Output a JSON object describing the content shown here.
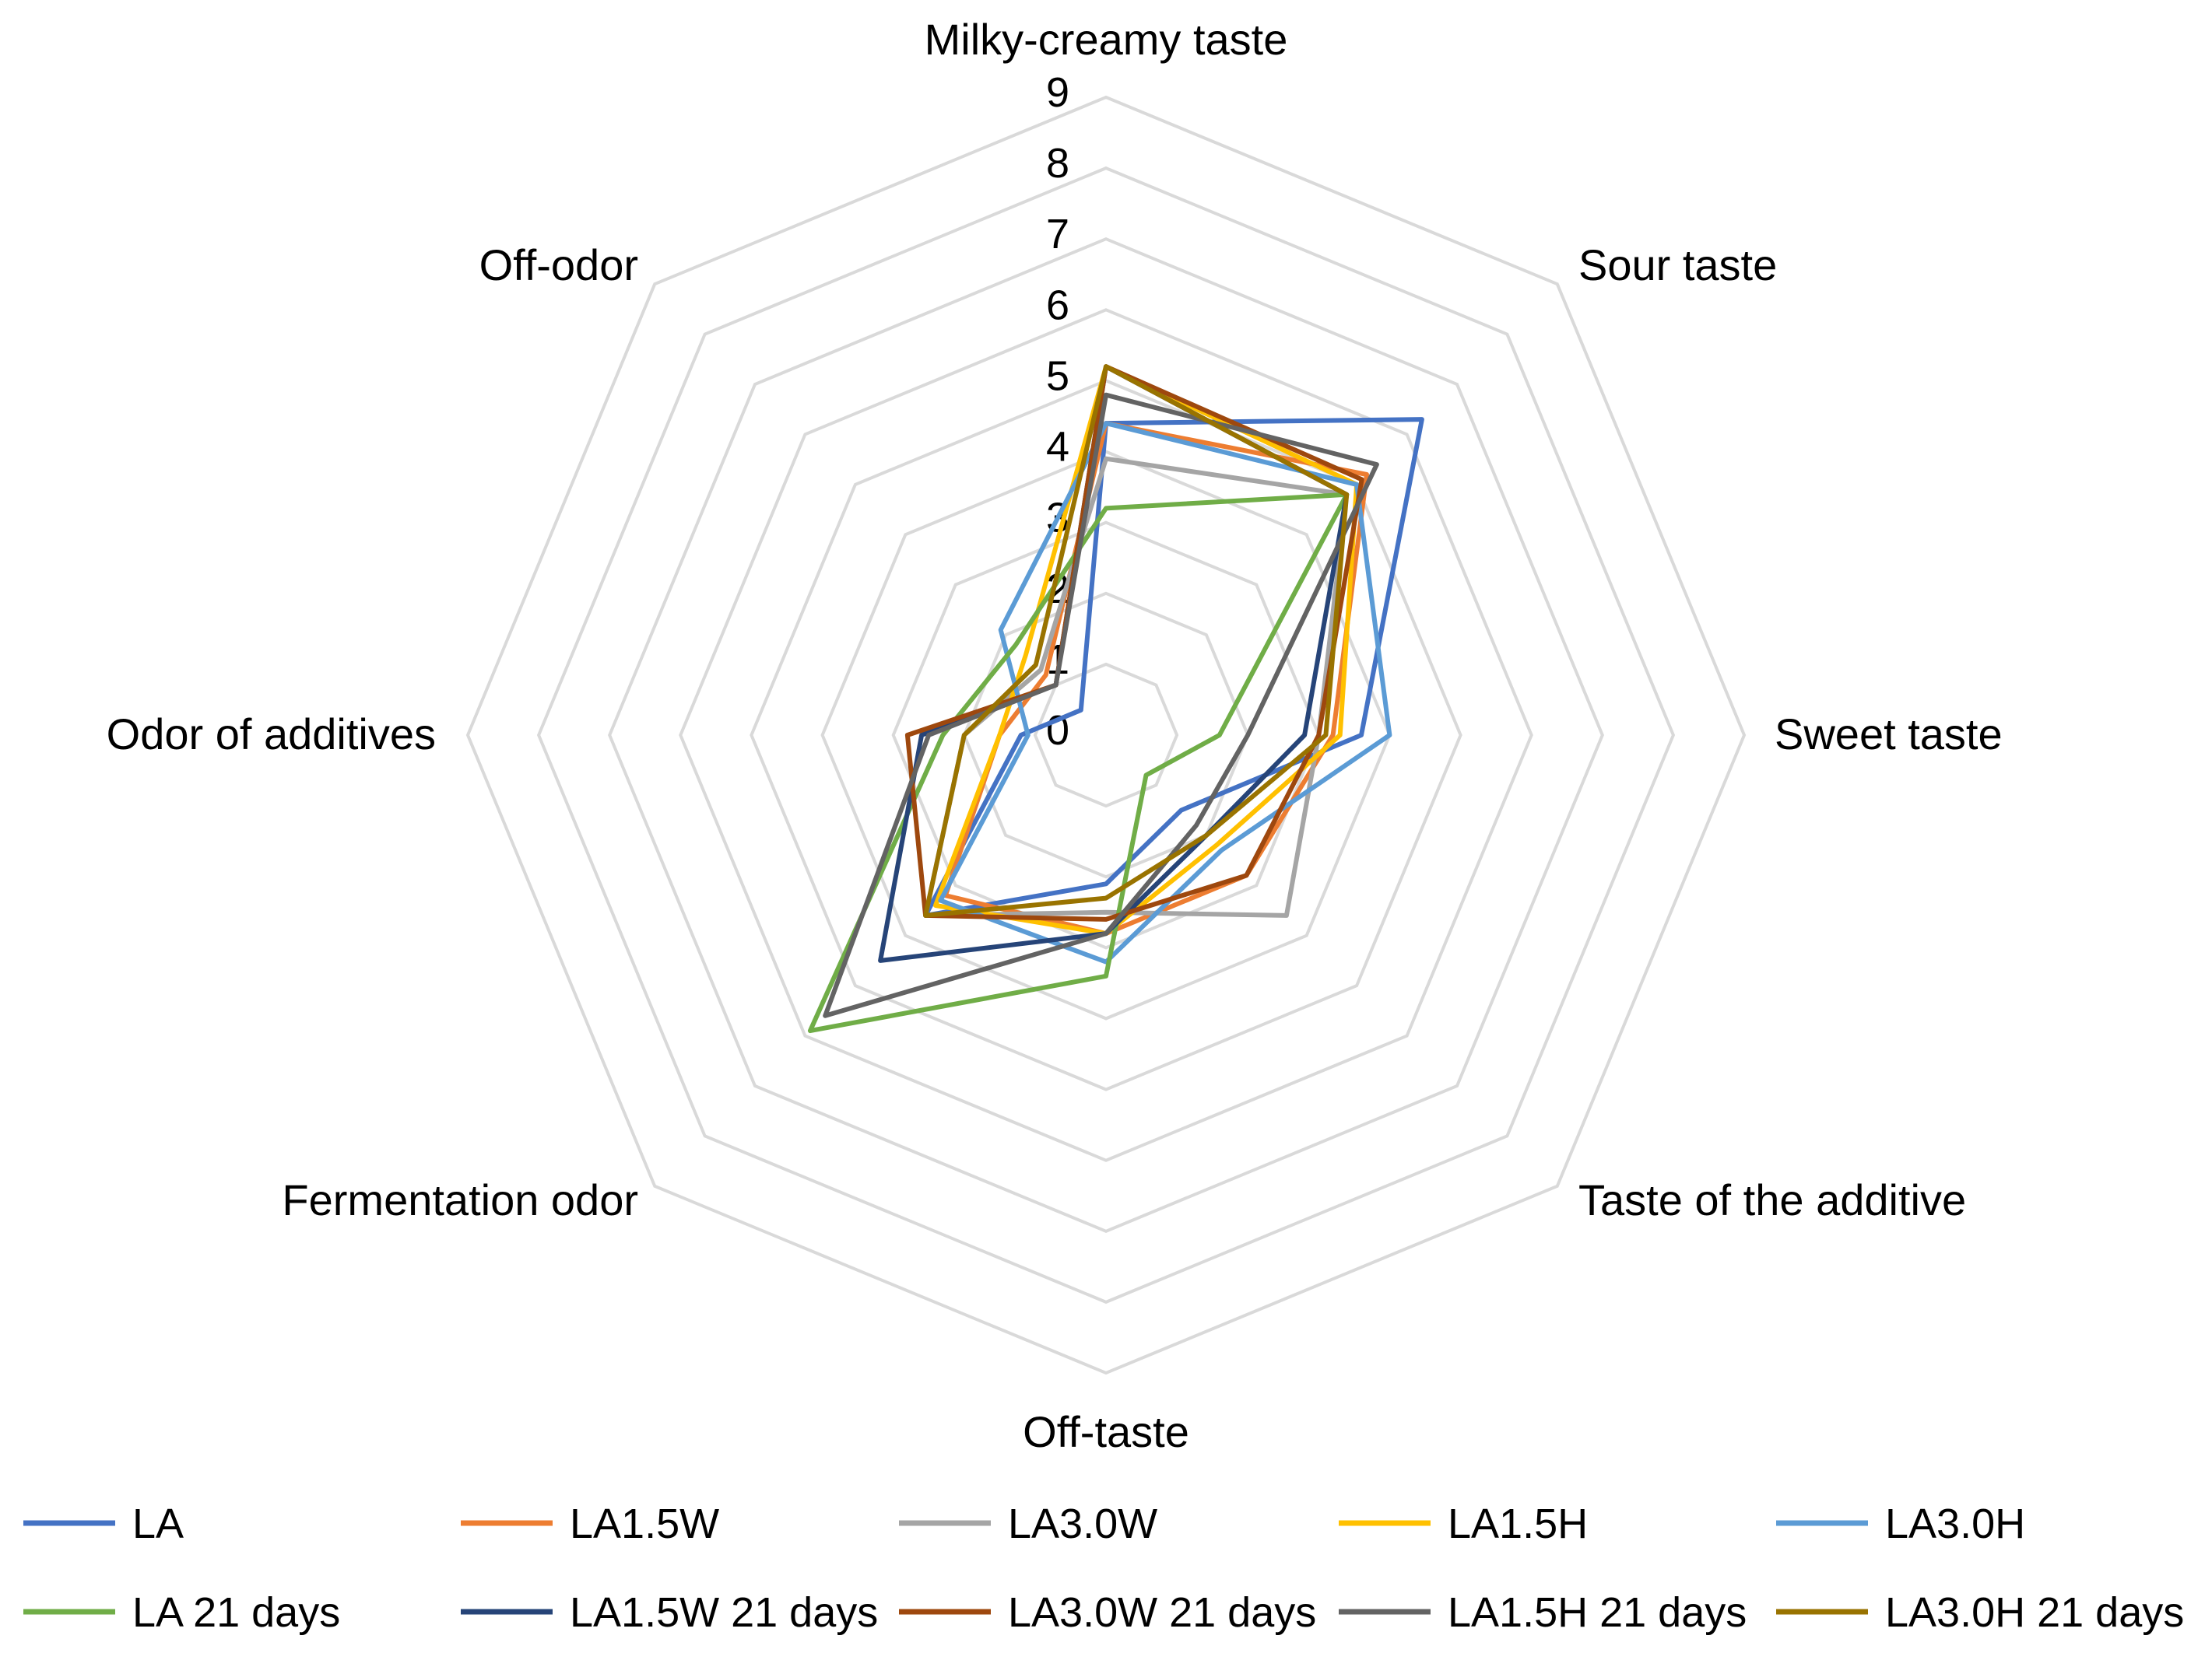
{
  "chart_data": {
    "type": "radar",
    "title": "",
    "axes": [
      "Milky-creamy taste",
      "Sour taste",
      "Sweet taste",
      "Taste of the additive",
      "Off-taste",
      "Fermentation odor",
      "Odor of additives",
      "Off-odor"
    ],
    "rlim": [
      0,
      9
    ],
    "ticks": [
      "0",
      "1",
      "2",
      "3",
      "4",
      "5",
      "6",
      "7",
      "8",
      "9"
    ],
    "grid_color": "#d9d9d9",
    "legend_position": "bottom",
    "series": [
      {
        "name": "LA",
        "color": "#4472c4",
        "values": [
          4.4,
          6.3,
          3.6,
          1.5,
          2.1,
          3.6,
          1.2,
          0.5
        ]
      },
      {
        "name": "LA1.5W",
        "color": "#ed7d31",
        "values": [
          4.4,
          5.2,
          3.2,
          2.8,
          2.8,
          3.2,
          1.5,
          1.2
        ]
      },
      {
        "name": "LA3.0W",
        "color": "#a5a5a5",
        "values": [
          3.9,
          4.8,
          3.0,
          3.6,
          2.5,
          3.6,
          2.0,
          1.3
        ]
      },
      {
        "name": "LA1.5H",
        "color": "#ffc000",
        "values": [
          5.2,
          5.0,
          3.3,
          2.2,
          2.8,
          3.4,
          1.5,
          1.6
        ]
      },
      {
        "name": "LA3.0H",
        "color": "#5b9bd5",
        "values": [
          4.4,
          5.0,
          4.0,
          2.3,
          3.2,
          3.3,
          1.1,
          2.1
        ]
      },
      {
        "name": "LA 21 days",
        "color": "#70ad47",
        "values": [
          3.2,
          4.8,
          1.6,
          0.8,
          3.4,
          5.9,
          2.3,
          1.8
        ]
      },
      {
        "name": "LA1.5W 21 days",
        "color": "#264478",
        "values": [
          5.2,
          4.8,
          2.8,
          2.0,
          2.8,
          4.5,
          2.6,
          1.0
        ]
      },
      {
        "name": "LA3.0W 21 days",
        "color": "#9e480e",
        "values": [
          5.2,
          5.1,
          3.0,
          2.8,
          2.6,
          3.6,
          2.8,
          1.0
        ]
      },
      {
        "name": "LA1.5H 21 days",
        "color": "#636363",
        "values": [
          4.8,
          5.4,
          2.0,
          1.8,
          2.8,
          5.6,
          2.5,
          1.0
        ]
      },
      {
        "name": "LA3.0H 21 days",
        "color": "#997300",
        "values": [
          5.2,
          4.8,
          3.1,
          2.0,
          2.3,
          3.6,
          2.0,
          1.4
        ]
      }
    ]
  }
}
